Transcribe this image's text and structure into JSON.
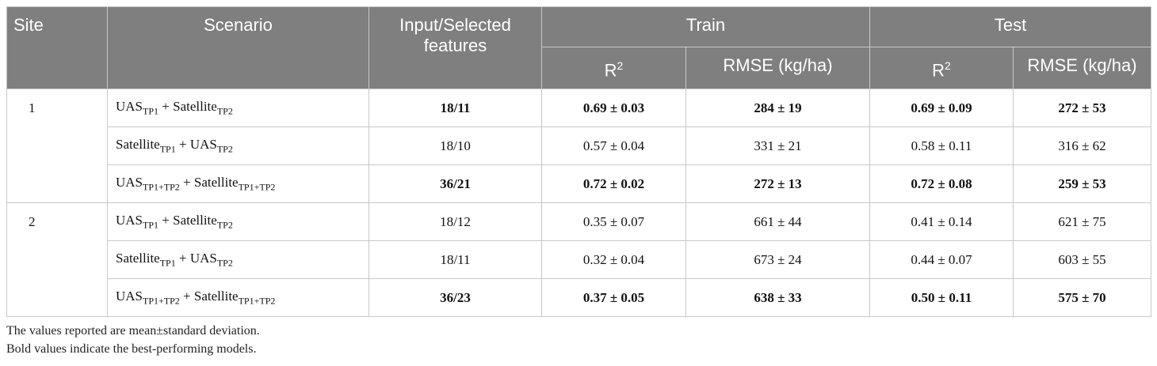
{
  "header": {
    "site": "Site",
    "scenario": "Scenario",
    "features": "Input/Selected features",
    "train": "Train",
    "test": "Test",
    "train_r2": {
      "base": "R",
      "sup": "2"
    },
    "train_rmse": "RMSE (kg/ha)",
    "test_r2": {
      "base": "R",
      "sup": "2"
    },
    "test_rmse": "RMSE (kg/ha)"
  },
  "groups": [
    {
      "site": "1",
      "rows": [
        {
          "scenario": [
            {
              "base": "UAS",
              "sub": "TP1"
            },
            {
              "base": " + Satellite",
              "sub": "TP2"
            }
          ],
          "features": "18/11",
          "train_r2": "0.69 ± 0.03",
          "train_rmse": "284 ± 19",
          "test_r2": "0.69 ± 0.09",
          "test_rmse": "272 ± 53",
          "bold": true
        },
        {
          "scenario": [
            {
              "base": "Satellite",
              "sub": "TP1"
            },
            {
              "base": " + UAS",
              "sub": "TP2"
            }
          ],
          "features": "18/10",
          "train_r2": "0.57 ± 0.04",
          "train_rmse": "331 ± 21",
          "test_r2": "0.58 ± 0.11",
          "test_rmse": "316 ± 62",
          "bold": false
        },
        {
          "scenario": [
            {
              "base": "UAS",
              "sub": "TP1+TP2"
            },
            {
              "base": " + Satellite",
              "sub": "TP1+TP2"
            }
          ],
          "features": "36/21",
          "train_r2": "0.72 ± 0.02",
          "train_rmse": "272 ± 13",
          "test_r2": "0.72 ± 0.08",
          "test_rmse": "259 ± 53",
          "bold": true
        }
      ]
    },
    {
      "site": "2",
      "rows": [
        {
          "scenario": [
            {
              "base": "UAS",
              "sub": "TP1"
            },
            {
              "base": " + Satellite",
              "sub": "TP2"
            }
          ],
          "features": "18/12",
          "train_r2": "0.35 ± 0.07",
          "train_rmse": "661 ± 44",
          "test_r2": "0.41 ± 0.14",
          "test_rmse": "621 ± 75",
          "bold": false
        },
        {
          "scenario": [
            {
              "base": "Satellite",
              "sub": "TP1"
            },
            {
              "base": " + UAS",
              "sub": "TP2"
            }
          ],
          "features": "18/11",
          "train_r2": "0.32 ± 0.04",
          "train_rmse": "673 ± 24",
          "test_r2": "0.44 ± 0.07",
          "test_rmse": "603 ± 55",
          "bold": false
        },
        {
          "scenario": [
            {
              "base": "UAS",
              "sub": "TP1+TP2"
            },
            {
              "base": " + Satellite",
              "sub": "TP1+TP2"
            }
          ],
          "features": "36/23",
          "train_r2": "0.37 ± 0.05",
          "train_rmse": "638 ± 33",
          "test_r2": "0.50 ± 0.11",
          "test_rmse": "575 ± 70",
          "bold": true
        }
      ]
    }
  ],
  "notes": [
    "The values reported are mean±standard deviation.",
    "Bold values indicate the best-performing models."
  ]
}
